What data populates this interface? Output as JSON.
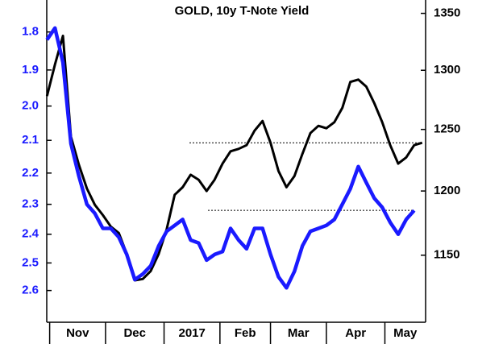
{
  "chart_data": {
    "type": "line",
    "title": "GOLD, 10y T-Note Yield",
    "x": [
      0,
      3,
      6,
      9,
      12,
      15,
      18,
      21,
      24,
      27,
      30,
      33,
      36,
      39,
      42,
      45,
      48,
      51,
      54,
      57,
      60,
      63,
      66,
      69,
      72,
      75,
      78,
      81,
      84,
      87,
      90,
      93,
      96,
      99,
      102,
      105,
      108,
      111,
      114,
      117,
      120,
      123,
      126,
      129,
      132,
      135,
      138,
      141
    ],
    "xlim": [
      -1,
      142
    ],
    "xticks": [
      {
        "value": 1,
        "label": "Nov"
      },
      {
        "value": 22,
        "label": "Dec"
      },
      {
        "value": 44,
        "label": "2017"
      },
      {
        "value": 65,
        "label": "Feb"
      },
      {
        "value": 84,
        "label": "Mar"
      },
      {
        "value": 105,
        "label": "Apr"
      },
      {
        "value": 127,
        "label": "May"
      }
    ],
    "ylim": [
      1.72,
      2.72
    ],
    "y_log": true,
    "y_inverted": true,
    "yticks": [
      1.8,
      1.9,
      {
        "value": 2,
        "label": "2.0"
      },
      2.1,
      2.2,
      2.3,
      2.4,
      2.5,
      2.6
    ],
    "y_tick_color": "#1a1aff",
    "y2lim": [
      1100,
      1362
    ],
    "y2_log": true,
    "y2ticks": [
      1150,
      1200,
      1250,
      1300,
      1350
    ],
    "series": [
      {
        "axis": "y2",
        "color": "#000000",
        "values": [
          1278,
          1305,
          1330,
          1244,
          1221,
          1202,
          1189,
          1181,
          1172,
          1167,
          1151,
          1131,
          1132,
          1138,
          1151,
          1170,
          1197,
          1203,
          1213,
          1209,
          1200,
          1209,
          1222,
          1232,
          1234,
          1237,
          1249,
          1257,
          1239,
          1216,
          1203,
          1212,
          1230,
          1247,
          1253,
          1251,
          1256,
          1268,
          1290,
          1292,
          1286,
          1272,
          1256,
          1237,
          1222,
          1227,
          1237,
          1239
        ]
      },
      {
        "axis": "y",
        "color": "#1a1aff",
        "values": [
          1.82,
          1.79,
          1.88,
          2.11,
          2.21,
          2.3,
          2.33,
          2.38,
          2.38,
          2.41,
          2.47,
          2.56,
          2.54,
          2.51,
          2.44,
          2.39,
          2.37,
          2.35,
          2.42,
          2.43,
          2.49,
          2.47,
          2.46,
          2.38,
          2.42,
          2.45,
          2.38,
          2.38,
          2.47,
          2.55,
          2.59,
          2.53,
          2.44,
          2.39,
          2.38,
          2.37,
          2.35,
          2.3,
          2.25,
          2.18,
          2.23,
          2.28,
          2.31,
          2.36,
          2.4,
          2.35,
          2.32,
          null
        ]
      }
    ]
  }
}
